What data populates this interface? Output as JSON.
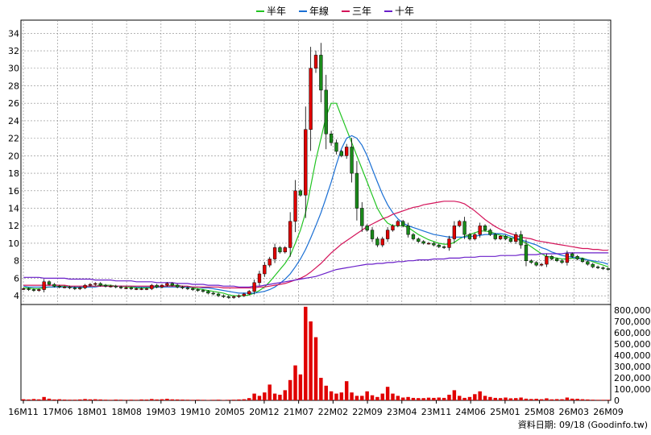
{
  "chart_data": {
    "type": "candlestick",
    "legend": [
      {
        "label": "半年",
        "color": "#22c422"
      },
      {
        "label": "年線",
        "color": "#1a6fd4"
      },
      {
        "label": "三年",
        "color": "#d4145a"
      },
      {
        "label": "十年",
        "color": "#6a1fc9"
      }
    ],
    "x_tick_labels": [
      "16M11",
      "17M06",
      "18M01",
      "18M08",
      "19M03",
      "19M10",
      "20M05",
      "20M12",
      "21M07",
      "22M02",
      "22M09",
      "23M04",
      "23M11",
      "24M06",
      "25M01",
      "25M08",
      "26M03",
      "26M09"
    ],
    "price_axis": {
      "ylim": [
        3,
        35.5
      ],
      "ticks": [
        4,
        6,
        8,
        10,
        12,
        14,
        16,
        18,
        20,
        22,
        24,
        26,
        28,
        30,
        32,
        34
      ]
    },
    "volume_axis": {
      "ylim": [
        0,
        850000
      ],
      "ticks": [
        "0",
        "100,000",
        "200,000",
        "300,000",
        "400,000",
        "500,000",
        "600,000",
        "700,000",
        "800,000"
      ],
      "tick_values": [
        0,
        100000,
        200000,
        300000,
        400000,
        500000,
        600000,
        700000,
        800000
      ]
    },
    "close": [
      4.8,
      4.7,
      4.6,
      4.7,
      5.6,
      5.3,
      5.1,
      5.0,
      5.0,
      4.9,
      4.8,
      4.9,
      5.2,
      5.3,
      5.4,
      5.2,
      5.1,
      5.1,
      5.0,
      4.9,
      4.9,
      4.8,
      4.8,
      4.8,
      4.8,
      5.2,
      5.0,
      5.2,
      5.4,
      5.2,
      5.0,
      4.9,
      4.8,
      4.7,
      4.6,
      4.5,
      4.3,
      4.2,
      4.0,
      3.9,
      3.8,
      3.9,
      4.0,
      4.2,
      4.5,
      5.5,
      6.5,
      7.5,
      8.2,
      9.5,
      9.0,
      9.5,
      12.5,
      16.0,
      15.5,
      23.0,
      30.0,
      31.5,
      27.5,
      22.5,
      21.5,
      20.5,
      20.0,
      21.0,
      18.0,
      14.0,
      12.0,
      11.5,
      10.5,
      9.8,
      10.5,
      11.5,
      12.0,
      12.5,
      12.0,
      11.0,
      10.5,
      10.2,
      10.0,
      10.0,
      9.8,
      9.6,
      9.5,
      10.5,
      12.0,
      12.5,
      11.0,
      10.5,
      11.0,
      12.0,
      11.5,
      11.0,
      10.5,
      10.8,
      10.5,
      10.2,
      11.0,
      9.8,
      8.0,
      7.8,
      7.5,
      7.6,
      8.5,
      8.2,
      8.0,
      7.8,
      8.8,
      8.5,
      8.2,
      7.9,
      7.6,
      7.3,
      7.2,
      7.1,
      7.0
    ],
    "volume": [
      10000,
      8000,
      12000,
      9000,
      30000,
      15000,
      8000,
      10000,
      7000,
      6000,
      6000,
      8000,
      12000,
      9000,
      10000,
      8000,
      6000,
      5000,
      7000,
      6000,
      5000,
      6000,
      5000,
      8000,
      7000,
      12000,
      8000,
      10000,
      14000,
      9000,
      8000,
      7000,
      6000,
      5000,
      6000,
      5000,
      4000,
      5000,
      6000,
      4000,
      5000,
      6000,
      8000,
      10000,
      20000,
      60000,
      40000,
      70000,
      140000,
      60000,
      50000,
      90000,
      180000,
      310000,
      230000,
      830000,
      700000,
      560000,
      200000,
      130000,
      80000,
      60000,
      70000,
      170000,
      70000,
      40000,
      40000,
      80000,
      45000,
      30000,
      60000,
      120000,
      60000,
      40000,
      25000,
      30000,
      22000,
      20000,
      20000,
      24000,
      22000,
      25000,
      22000,
      50000,
      90000,
      40000,
      22000,
      30000,
      55000,
      80000,
      40000,
      30000,
      22000,
      20000,
      25000,
      18000,
      20000,
      25000,
      15000,
      12000,
      14000,
      10000,
      18000,
      9000,
      11000,
      10000,
      25000,
      15000,
      14000,
      10000,
      8000,
      6000,
      5000,
      5000,
      5000
    ],
    "moving_averages": [
      {
        "label": "半年",
        "values": [
          4.9,
          4.9,
          4.8,
          4.8,
          4.9,
          5.0,
          5.0,
          5.1,
          5.1,
          5.0,
          5.0,
          4.9,
          5.0,
          5.0,
          5.1,
          5.2,
          5.2,
          5.2,
          5.1,
          5.1,
          5.0,
          5.0,
          4.9,
          4.9,
          4.9,
          4.9,
          5.0,
          5.0,
          5.1,
          5.2,
          5.2,
          5.1,
          5.0,
          4.9,
          4.8,
          4.7,
          4.6,
          4.5,
          4.4,
          4.3,
          4.1,
          4.0,
          4.0,
          4.0,
          4.1,
          4.3,
          4.6,
          5.0,
          5.6,
          6.3,
          7.0,
          7.7,
          8.6,
          10.0,
          11.5,
          13.5,
          16.5,
          19.5,
          22.0,
          24.5,
          26.0,
          26.0,
          24.5,
          23.0,
          21.5,
          20.0,
          18.5,
          17.0,
          15.5,
          14.0,
          13.0,
          12.3,
          12.0,
          12.0,
          12.0,
          11.8,
          11.4,
          11.0,
          10.7,
          10.4,
          10.2,
          10.0,
          9.9,
          9.9,
          10.1,
          10.5,
          10.8,
          11.0,
          11.2,
          11.4,
          11.4,
          11.3,
          11.1,
          10.9,
          10.8,
          10.6,
          10.5,
          10.3,
          10.0,
          9.6,
          9.2,
          8.8,
          8.5,
          8.4,
          8.3,
          8.2,
          8.2,
          8.3,
          8.3,
          8.3,
          8.1,
          7.9,
          7.7,
          7.5,
          7.3
        ]
      },
      {
        "label": "年線",
        "values": [
          5.1,
          5.0,
          5.0,
          5.0,
          5.0,
          5.0,
          5.0,
          5.0,
          5.0,
          5.0,
          5.0,
          5.0,
          5.0,
          5.0,
          5.0,
          5.1,
          5.1,
          5.1,
          5.1,
          5.1,
          5.1,
          5.1,
          5.0,
          5.0,
          5.0,
          5.0,
          5.0,
          5.0,
          5.0,
          5.0,
          5.0,
          5.0,
          5.0,
          5.0,
          5.0,
          4.9,
          4.9,
          4.8,
          4.7,
          4.6,
          4.5,
          4.4,
          4.3,
          4.3,
          4.3,
          4.3,
          4.4,
          4.5,
          4.7,
          5.0,
          5.4,
          5.9,
          6.5,
          7.3,
          8.2,
          9.3,
          10.6,
          12.0,
          13.5,
          15.2,
          17.0,
          19.0,
          20.8,
          22.0,
          22.3,
          22.0,
          21.2,
          20.0,
          18.5,
          17.0,
          15.6,
          14.4,
          13.5,
          12.8,
          12.3,
          12.0,
          11.8,
          11.6,
          11.4,
          11.2,
          11.0,
          10.9,
          10.8,
          10.7,
          10.7,
          10.7,
          10.7,
          10.8,
          10.8,
          10.9,
          11.0,
          11.0,
          11.1,
          11.1,
          11.0,
          10.8,
          10.6,
          10.4,
          10.2,
          10.0,
          9.8,
          9.5,
          9.3,
          9.0,
          8.8,
          8.6,
          8.5,
          8.4,
          8.3,
          8.2,
          8.1,
          8.0,
          7.9,
          7.8,
          7.6
        ]
      },
      {
        "label": "三年",
        "values": [
          5.2,
          5.2,
          5.2,
          5.2,
          5.2,
          5.2,
          5.2,
          5.2,
          5.2,
          5.1,
          5.1,
          5.1,
          5.1,
          5.1,
          5.1,
          5.1,
          5.1,
          5.1,
          5.1,
          5.1,
          5.1,
          5.1,
          5.1,
          5.1,
          5.1,
          5.1,
          5.1,
          5.1,
          5.1,
          5.1,
          5.1,
          5.1,
          5.1,
          5.0,
          5.0,
          5.0,
          5.0,
          5.0,
          5.0,
          4.9,
          4.9,
          4.9,
          4.9,
          4.9,
          4.9,
          4.9,
          5.0,
          5.0,
          5.1,
          5.2,
          5.3,
          5.4,
          5.6,
          5.8,
          6.0,
          6.3,
          6.7,
          7.2,
          7.7,
          8.3,
          8.9,
          9.4,
          9.9,
          10.3,
          10.7,
          11.1,
          11.5,
          11.9,
          12.2,
          12.5,
          12.8,
          13.0,
          13.3,
          13.5,
          13.7,
          13.9,
          14.1,
          14.2,
          14.4,
          14.5,
          14.6,
          14.7,
          14.8,
          14.8,
          14.8,
          14.7,
          14.5,
          14.1,
          13.7,
          13.2,
          12.7,
          12.3,
          11.9,
          11.6,
          11.3,
          11.1,
          10.9,
          10.7,
          10.6,
          10.5,
          10.3,
          10.2,
          10.1,
          10.0,
          9.9,
          9.8,
          9.7,
          9.6,
          9.5,
          9.4,
          9.4,
          9.3,
          9.3,
          9.2,
          9.2
        ]
      },
      {
        "label": "十年",
        "values": [
          6.1,
          6.1,
          6.1,
          6.1,
          6.0,
          6.0,
          6.0,
          6.0,
          6.0,
          5.9,
          5.9,
          5.9,
          5.9,
          5.9,
          5.8,
          5.8,
          5.8,
          5.8,
          5.7,
          5.7,
          5.7,
          5.7,
          5.6,
          5.6,
          5.6,
          5.6,
          5.5,
          5.5,
          5.5,
          5.5,
          5.4,
          5.4,
          5.4,
          5.3,
          5.3,
          5.3,
          5.2,
          5.2,
          5.2,
          5.1,
          5.1,
          5.1,
          5.0,
          5.0,
          5.0,
          5.1,
          5.1,
          5.2,
          5.3,
          5.4,
          5.5,
          5.6,
          5.7,
          5.8,
          5.9,
          6.0,
          6.1,
          6.2,
          6.4,
          6.6,
          6.8,
          7.0,
          7.1,
          7.2,
          7.3,
          7.4,
          7.5,
          7.6,
          7.6,
          7.7,
          7.7,
          7.8,
          7.8,
          7.9,
          7.9,
          8.0,
          8.0,
          8.1,
          8.1,
          8.1,
          8.2,
          8.2,
          8.2,
          8.3,
          8.3,
          8.3,
          8.4,
          8.4,
          8.4,
          8.5,
          8.5,
          8.5,
          8.5,
          8.6,
          8.6,
          8.6,
          8.6,
          8.7,
          8.7,
          8.7,
          8.7,
          8.8,
          8.8,
          8.8,
          8.8,
          8.8,
          8.9,
          8.9,
          8.9,
          8.9,
          8.9,
          8.9,
          8.9,
          8.9,
          8.9
        ]
      }
    ],
    "colors": {
      "up": "#e00000",
      "down": "#1a8a1a",
      "volume": "#e00000",
      "grid": "#888888"
    }
  },
  "footer": {
    "text": "資料日期: 09/18 (Goodinfo.tw)"
  }
}
